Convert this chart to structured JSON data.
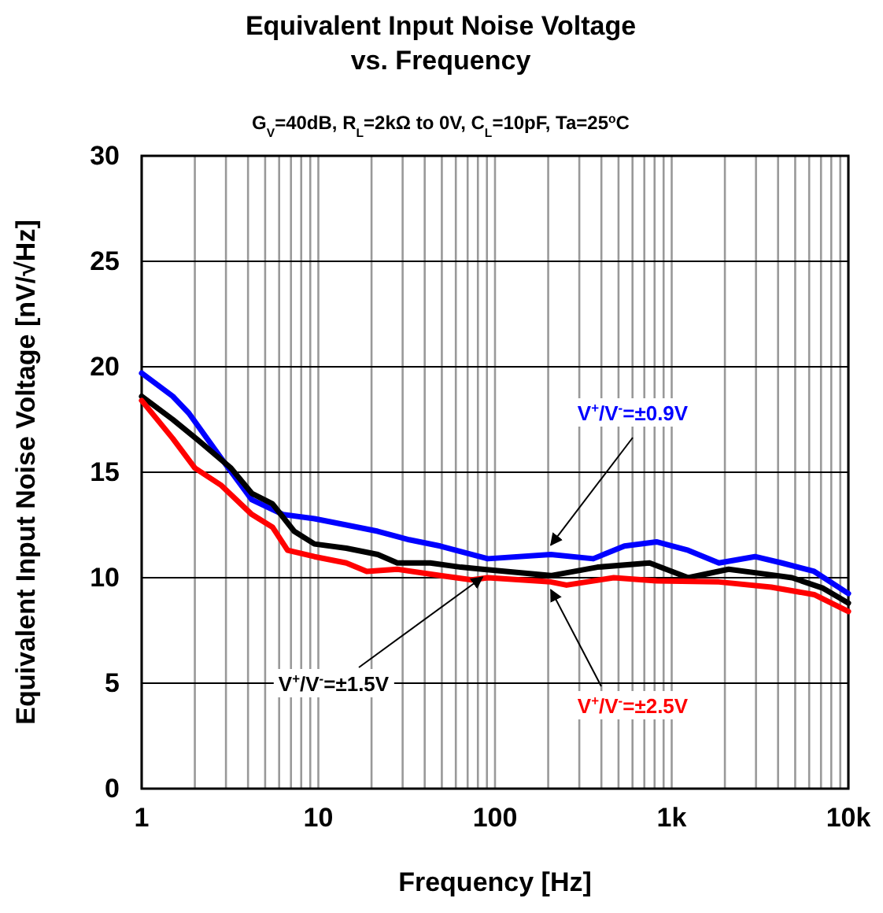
{
  "chart_data": {
    "type": "line",
    "title": "Equivalent Input Noise Voltage\nvs. Frequency",
    "subtitle": "G$_{V}$=40dB, R$_{L}$=2kΩ to 0V, C$_{L}$=10pF, Ta=25$^{o}$C",
    "xlabel": "Frequency [Hz]",
    "ylabel": "Equivalent Input Noise Voltage [nV/√Hz]",
    "log": "x",
    "grid": true,
    "xlim": [
      1,
      10000
    ],
    "ylim": [
      0,
      30
    ],
    "xticks": [
      1,
      10,
      100,
      {
        "value": 1000,
        "label": "1k"
      },
      {
        "value": 10000,
        "label": "10k"
      }
    ],
    "yticks": [
      0,
      5,
      10,
      15,
      20,
      25,
      30
    ],
    "series": [
      {
        "name": "V$^{+}$/V$^{-}$=±0.9V",
        "color": "#0000ff",
        "x": [
          1,
          1.5,
          1.85,
          2.8,
          4.2,
          6.3,
          9.5,
          14.4,
          21.7,
          32.7,
          49,
          60,
          91,
          207,
          360,
          540,
          820,
          1240,
          1850,
          2960,
          4200,
          6400,
          10000
        ],
        "values": [
          19.7,
          18.6,
          17.8,
          15.7,
          13.7,
          13.0,
          12.8,
          12.5,
          12.2,
          11.8,
          11.5,
          11.3,
          10.9,
          11.1,
          10.9,
          11.5,
          11.7,
          11.3,
          10.7,
          11.0,
          10.7,
          10.3,
          9.25
        ]
      },
      {
        "name": "V$^{+}$/V$^{-}$=±1.5V",
        "color": "#000000",
        "x": [
          1,
          1.5,
          2.1,
          3.2,
          4.2,
          5.5,
          7.3,
          9.5,
          14.4,
          21.7,
          28,
          43,
          64,
          85,
          207,
          380,
          750,
          1240,
          2100,
          3200,
          4800,
          7200,
          10000
        ],
        "values": [
          18.6,
          17.5,
          16.5,
          15.2,
          14.0,
          13.5,
          12.2,
          11.6,
          11.4,
          11.1,
          10.7,
          10.7,
          10.5,
          10.4,
          10.1,
          10.5,
          10.7,
          10.0,
          10.4,
          10.2,
          10.0,
          9.5,
          8.8
        ]
      },
      {
        "name": "V$^{+}$/V$^{-}$=±2.5V",
        "color": "#ff0000",
        "x": [
          1,
          1.5,
          2,
          2.8,
          4.2,
          5.5,
          6.7,
          9.5,
          14.4,
          18.8,
          28,
          49,
          74,
          91,
          207,
          254,
          470,
          820,
          1850,
          3660,
          6400,
          10000
        ],
        "values": [
          18.4,
          16.6,
          15.2,
          14.4,
          13.0,
          12.4,
          11.3,
          11.0,
          10.7,
          10.3,
          10.4,
          10.1,
          9.9,
          10.0,
          9.8,
          9.65,
          10.0,
          9.85,
          9.8,
          9.55,
          9.2,
          8.4
        ]
      }
    ]
  }
}
